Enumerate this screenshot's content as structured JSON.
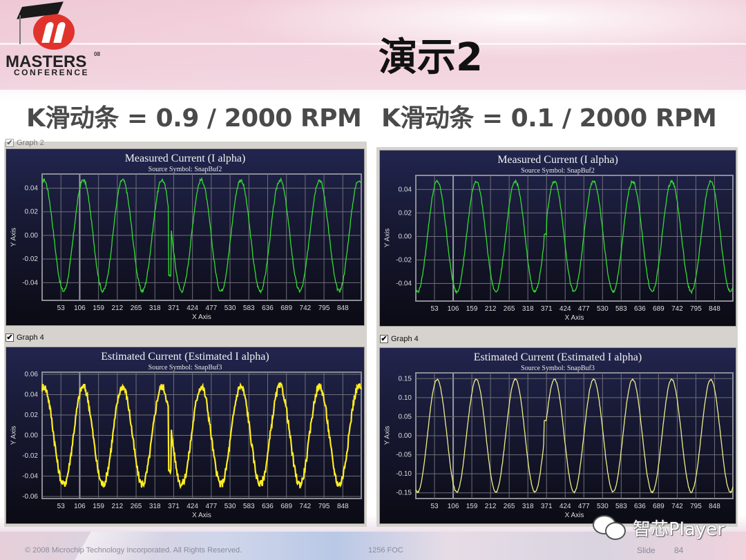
{
  "slide": {
    "title": "演示2",
    "logo": {
      "line1": "MASTERS",
      "line2": "CONFERENCE",
      "year": "08"
    },
    "subtitles": {
      "left": "K滑动条 = 0.9 / 2000 RPM",
      "right": "K滑动条 = 0.1 / 2000 RPM"
    },
    "footer": {
      "copyright": "© 2008 Microchip Technology Incorporated. All Rights Reserved.",
      "code": "1256 FOC",
      "slide_label": "Slide",
      "slide_number": "84"
    },
    "watermark": "智芯Player"
  },
  "panes": {
    "left_top_label": "Graph 2",
    "left_bottom_label": "Graph 4",
    "right_bottom_label": "Graph 4"
  },
  "x_ticks": [
    "53",
    "106",
    "159",
    "212",
    "265",
    "318",
    "371",
    "424",
    "477",
    "530",
    "583",
    "636",
    "689",
    "742",
    "795",
    "848"
  ],
  "chart_data": [
    {
      "type": "line",
      "id": "left-measured",
      "title": "Measured Current (I alpha)",
      "subtitle": "Source Symbol: SnapBuf2",
      "xlabel": "X Axis",
      "ylabel": "Y Axis",
      "color": "#33dd33",
      "yticks": [
        "0.04",
        "0.02",
        "0.00",
        "-0.02",
        "-0.04"
      ],
      "ylim": [
        -0.055,
        0.052
      ],
      "xlim": [
        0,
        900
      ],
      "amplitude": 0.047,
      "period_samples": 111,
      "phase_note": "starts at peak; transient glitch near x≈371 (drops to ~-0.034)",
      "grid": true
    },
    {
      "type": "line",
      "id": "left-estimated",
      "title": "Estimated Current (Estimated I alpha)",
      "subtitle": "Source Symbol: SnapBuf3",
      "xlabel": "X Axis",
      "ylabel": "Y Axis",
      "color": "#ffee22",
      "yticks": [
        "0.06",
        "0.04",
        "0.02",
        "0.00",
        "-0.02",
        "-0.04",
        "-0.06"
      ],
      "ylim": [
        -0.062,
        0.062
      ],
      "xlim": [
        0,
        900
      ],
      "amplitude": 0.048,
      "period_samples": 111,
      "phase_note": "noisy (chattering) trace; glitch near x≈371",
      "grid": true
    },
    {
      "type": "line",
      "id": "right-measured",
      "title": "Measured Current (I alpha)",
      "subtitle": "Source Symbol: SnapBuf2",
      "xlabel": "X Axis",
      "ylabel": "Y Axis",
      "color": "#33dd33",
      "yticks": [
        "0.04",
        "0.02",
        "0.00",
        "-0.02",
        "-0.04"
      ],
      "ylim": [
        -0.055,
        0.052
      ],
      "xlim": [
        0,
        900
      ],
      "amplitude": 0.047,
      "period_samples": 111,
      "phase_note": "starts near trough; small spike to ~0.002 near x≈371",
      "grid": true
    },
    {
      "type": "line",
      "id": "right-estimated",
      "title": "Estimated Current (Estimated I alpha)",
      "subtitle": "Source Symbol: SnapBuf3",
      "xlabel": "X Axis",
      "ylabel": "Y Axis",
      "color": "#eeee88",
      "yticks": [
        "0.15",
        "0.10",
        "0.05",
        "0.00",
        "-0.05",
        "-0.10",
        "-0.15"
      ],
      "ylim": [
        -0.165,
        0.165
      ],
      "xlim": [
        0,
        900
      ],
      "amplitude": 0.148,
      "period_samples": 111,
      "phase_note": "clean sinusoid; small spike to ~0.04 near x≈371",
      "grid": true
    }
  ]
}
